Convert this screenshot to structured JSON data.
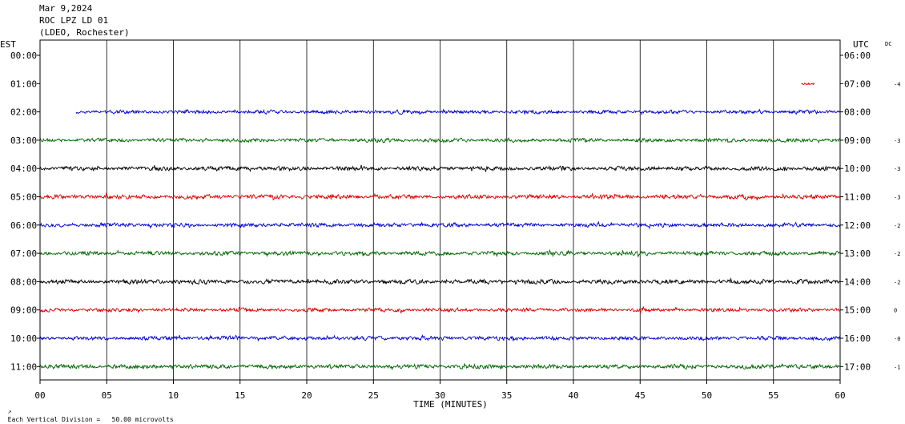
{
  "header": {
    "date": "Mar 9,2024",
    "station": "ROC LPZ LD 01",
    "network": "(LDEO, Rochester)"
  },
  "left_timezone": "EST",
  "right_timezone": "UTC",
  "dc_label": "DC",
  "footnote": "Each Vertical Division =   50.00 microvolts",
  "chart_data": {
    "type": "line",
    "title": "",
    "xlabel": "TIME (MINUTES)",
    "xlim": [
      0,
      60
    ],
    "x_ticks": [
      "00",
      "05",
      "10",
      "15",
      "20",
      "25",
      "30",
      "35",
      "40",
      "45",
      "50",
      "55",
      "60"
    ],
    "grid": true,
    "trace_colors": [
      "#000000",
      "#dd0000",
      "#0000cc",
      "#006600"
    ],
    "rows": [
      {
        "est": "00:00",
        "utc": "06:00",
        "dc": "",
        "start_min": null,
        "end_min": null,
        "amp": 0,
        "color": "#000000"
      },
      {
        "est": "01:00",
        "utc": "07:00",
        "dc": "-4",
        "start_min": 57.1,
        "end_min": 58.1,
        "amp": 2.5,
        "color": "#dd0000"
      },
      {
        "est": "02:00",
        "utc": "08:00",
        "dc": "",
        "start_min": 2.7,
        "end_min": 60,
        "amp": 3.2,
        "color": "#0000cc"
      },
      {
        "est": "03:00",
        "utc": "09:00",
        "dc": "-3",
        "start_min": 0,
        "end_min": 60,
        "amp": 3.2,
        "color": "#006600"
      },
      {
        "est": "04:00",
        "utc": "10:00",
        "dc": "-3",
        "start_min": 0,
        "end_min": 60,
        "amp": 3.6,
        "color": "#000000"
      },
      {
        "est": "05:00",
        "utc": "11:00",
        "dc": "-3",
        "start_min": 0,
        "end_min": 60,
        "amp": 3.6,
        "color": "#dd0000"
      },
      {
        "est": "06:00",
        "utc": "12:00",
        "dc": "-2",
        "start_min": 0,
        "end_min": 60,
        "amp": 3.4,
        "color": "#0000cc"
      },
      {
        "est": "07:00",
        "utc": "13:00",
        "dc": "-2",
        "start_min": 0,
        "end_min": 60,
        "amp": 3.4,
        "color": "#006600"
      },
      {
        "est": "08:00",
        "utc": "14:00",
        "dc": "-2",
        "start_min": 0,
        "end_min": 60,
        "amp": 3.8,
        "color": "#000000"
      },
      {
        "est": "09:00",
        "utc": "15:00",
        "dc": "0",
        "start_min": 0,
        "end_min": 60,
        "amp": 3.2,
        "color": "#dd0000"
      },
      {
        "est": "10:00",
        "utc": "16:00",
        "dc": "-0",
        "start_min": 0,
        "end_min": 60,
        "amp": 3.4,
        "color": "#0000cc"
      },
      {
        "est": "11:00",
        "utc": "17:00",
        "dc": "-1",
        "start_min": 0,
        "end_min": 60,
        "amp": 3.6,
        "color": "#006600"
      }
    ]
  }
}
